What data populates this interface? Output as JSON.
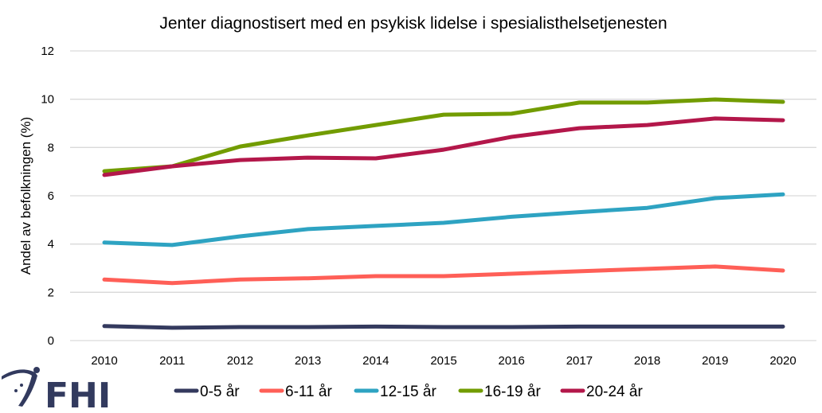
{
  "chart_data": {
    "type": "line",
    "title": "Jenter diagnostisert med en psykisk lidelse i spesialisthelsetjenesten",
    "xlabel": "",
    "ylabel": "Andel av befolkningen (%)",
    "ylim": [
      0,
      12
    ],
    "yticks": [
      0,
      2,
      4,
      6,
      8,
      10,
      12
    ],
    "grid": true,
    "legend_position": "bottom",
    "x": [
      "2010",
      "2011",
      "2012",
      "2013",
      "2014",
      "2015",
      "2016",
      "2017",
      "2018",
      "2019",
      "2020"
    ],
    "series": [
      {
        "name": "0-5 år",
        "color": "#343a5e",
        "values": [
          0.6,
          0.53,
          0.56,
          0.56,
          0.58,
          0.56,
          0.56,
          0.58,
          0.58,
          0.58,
          0.58
        ]
      },
      {
        "name": "6-11 år",
        "color": "#ff5f57",
        "values": [
          2.53,
          2.38,
          2.53,
          2.58,
          2.67,
          2.67,
          2.77,
          2.87,
          2.97,
          3.07,
          2.9
        ]
      },
      {
        "name": "12-15 år",
        "color": "#2ea3c2",
        "values": [
          4.06,
          3.96,
          4.32,
          4.62,
          4.75,
          4.88,
          5.13,
          5.32,
          5.5,
          5.9,
          6.06
        ]
      },
      {
        "name": "16-19 år",
        "color": "#729c00",
        "values": [
          7.02,
          7.22,
          8.04,
          8.5,
          8.93,
          9.36,
          9.4,
          9.86,
          9.86,
          9.99,
          9.89
        ]
      },
      {
        "name": "20-24 år",
        "color": "#b3174a",
        "values": [
          6.86,
          7.22,
          7.48,
          7.58,
          7.55,
          7.91,
          8.44,
          8.8,
          8.93,
          9.2,
          9.13
        ]
      }
    ]
  },
  "logo": {
    "text": "FHI",
    "color": "#323a5e"
  }
}
